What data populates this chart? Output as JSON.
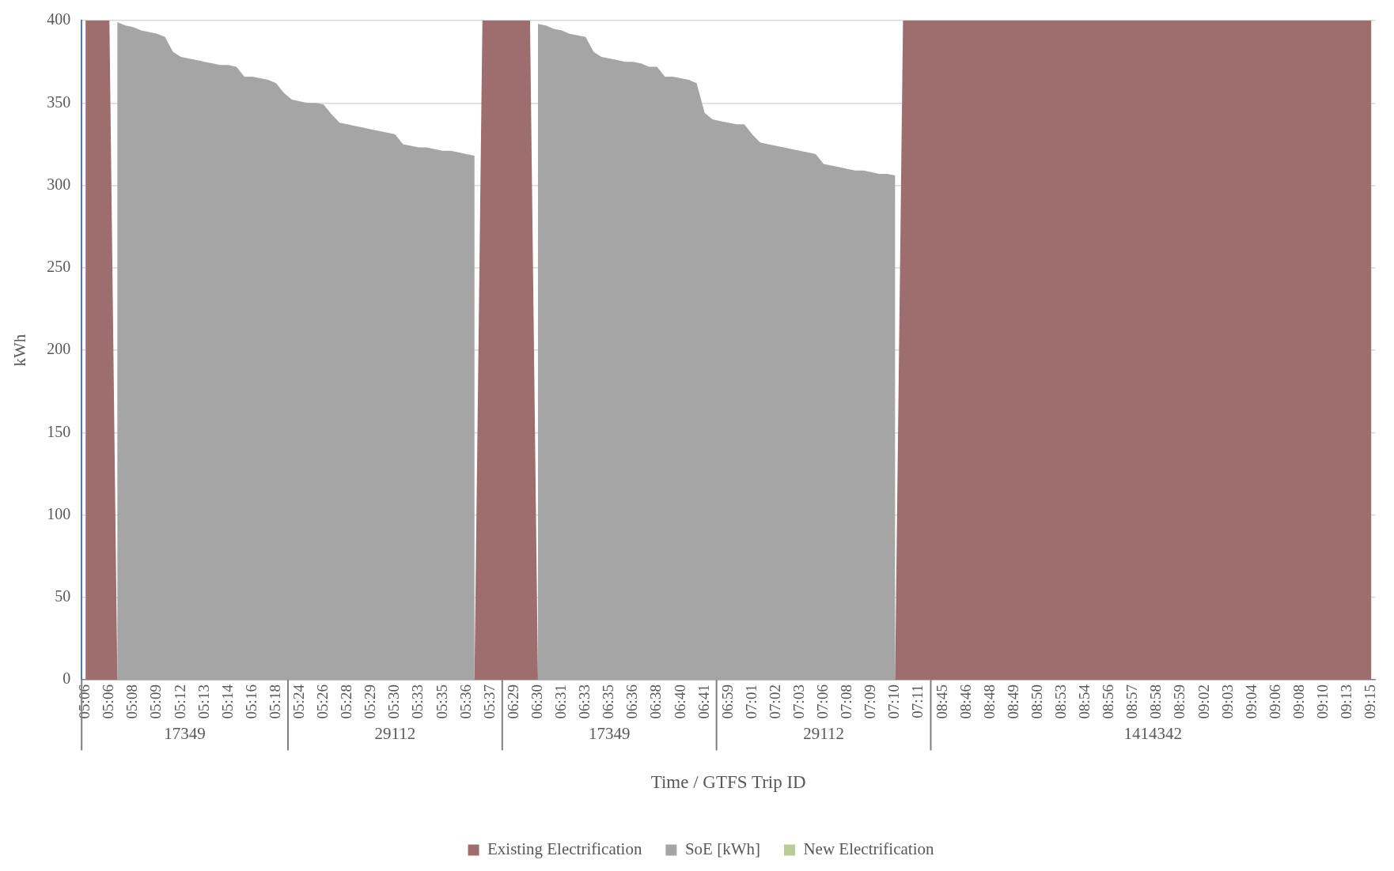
{
  "chart_data": {
    "type": "area",
    "xlabel": "Time / GTFS Trip ID",
    "ylabel": "kWh",
    "ylim": [
      0,
      400
    ],
    "yticks": [
      0,
      50,
      100,
      150,
      200,
      250,
      300,
      350,
      400
    ],
    "grid": "y",
    "legend": "bottom",
    "categories": [
      "05:06",
      null,
      null,
      "05:06",
      null,
      null,
      "05:08",
      null,
      null,
      "05:09",
      null,
      null,
      "05:12",
      null,
      null,
      "05:13",
      null,
      null,
      "05:14",
      null,
      null,
      "05:16",
      null,
      null,
      "05:18",
      null,
      null,
      "05:24",
      null,
      null,
      "05:26",
      null,
      null,
      "05:28",
      null,
      null,
      "05:29",
      null,
      null,
      "05:30",
      null,
      null,
      "05:33",
      null,
      null,
      "05:35",
      null,
      null,
      "05:36",
      null,
      null,
      "05:37",
      null,
      null,
      "06:29",
      null,
      null,
      "06:30",
      null,
      null,
      "06:31",
      null,
      null,
      "06:33",
      null,
      null,
      "06:35",
      null,
      null,
      "06:36",
      null,
      null,
      "06:38",
      null,
      null,
      "06:40",
      null,
      null,
      "06:41",
      null,
      null,
      "06:59",
      null,
      null,
      "07:01",
      null,
      null,
      "07:02",
      null,
      null,
      "07:03",
      null,
      null,
      "07:06",
      null,
      null,
      "07:08",
      null,
      null,
      "07:09",
      null,
      null,
      "07:10",
      null,
      null,
      "07:11",
      null,
      null,
      "08:45",
      null,
      null,
      "08:46",
      null,
      null,
      "08:48",
      null,
      null,
      "08:49",
      null,
      null,
      "08:50",
      null,
      null,
      "08:53",
      null,
      null,
      "08:54",
      null,
      null,
      "08:56",
      null,
      null,
      "08:57",
      null,
      null,
      "08:58",
      null,
      null,
      "08:59",
      null,
      null,
      "09:02",
      null,
      null,
      "09:03",
      null,
      null,
      "09:04",
      null,
      null,
      "09:06",
      null,
      null,
      "09:08",
      null,
      null,
      "09:10",
      null,
      null,
      "09:13",
      null,
      null,
      "09:15"
    ],
    "series": [
      {
        "name": "Existing Electrification",
        "color": "#9e6e6e",
        "values": [
          400,
          400,
          400,
          400,
          0,
          0,
          0,
          0,
          0,
          0,
          0,
          0,
          0,
          0,
          0,
          0,
          0,
          0,
          0,
          0,
          0,
          0,
          0,
          0,
          0,
          0,
          0,
          0,
          0,
          0,
          0,
          0,
          0,
          0,
          0,
          0,
          0,
          0,
          0,
          0,
          0,
          0,
          0,
          0,
          0,
          0,
          0,
          0,
          0,
          0,
          400,
          400,
          400,
          400,
          400,
          400,
          400,
          0,
          0,
          0,
          0,
          0,
          0,
          0,
          0,
          0,
          0,
          0,
          0,
          0,
          0,
          0,
          0,
          0,
          0,
          0,
          0,
          0,
          0,
          0,
          0,
          0,
          0,
          0,
          0,
          0,
          0,
          0,
          0,
          0,
          0,
          0,
          0,
          0,
          0,
          0,
          0,
          0,
          0,
          0,
          0,
          0,
          0,
          400,
          400,
          400,
          400,
          400,
          400,
          400,
          400,
          400,
          400,
          400,
          400,
          400,
          400,
          400,
          400,
          400,
          400,
          400,
          400,
          400,
          400,
          400,
          400,
          400,
          400,
          400,
          400,
          400,
          400,
          400,
          400,
          400,
          400,
          400,
          400,
          400,
          400,
          400,
          400,
          400,
          400,
          400,
          400,
          400,
          400,
          400,
          400,
          400,
          400,
          400,
          400,
          400,
          400,
          400,
          400,
          400,
          400,
          400,
          400
        ]
      },
      {
        "name": "SoE [kWh]",
        "color": "#a5a5a5",
        "values": [
          null,
          null,
          null,
          null,
          399,
          397,
          396,
          394,
          393,
          392,
          390,
          381,
          378,
          377,
          376,
          375,
          374,
          373,
          373,
          372,
          366,
          366,
          365,
          364,
          362,
          356,
          352,
          351,
          350,
          350,
          349,
          343,
          338,
          337,
          336,
          335,
          334,
          333,
          332,
          331,
          325,
          324,
          323,
          323,
          322,
          321,
          321,
          320,
          319,
          318,
          null,
          null,
          null,
          null,
          null,
          null,
          null,
          398,
          397,
          395,
          394,
          392,
          391,
          390,
          381,
          378,
          377,
          376,
          375,
          375,
          374,
          372,
          372,
          366,
          366,
          365,
          364,
          362,
          344,
          340,
          339,
          338,
          337,
          337,
          331,
          326,
          325,
          324,
          323,
          322,
          321,
          320,
          319,
          313,
          312,
          311,
          310,
          309,
          309,
          308,
          307,
          307,
          306,
          null,
          null,
          null,
          null,
          null,
          null,
          null,
          null,
          null,
          null,
          null,
          null,
          null,
          null,
          null,
          null,
          null,
          null,
          null,
          null,
          null,
          null,
          null,
          null,
          null,
          null,
          null,
          null,
          null,
          null,
          null,
          null,
          null,
          null,
          null,
          null,
          null,
          null,
          null,
          null,
          null,
          null,
          null,
          null,
          null,
          null,
          null,
          null,
          null,
          null,
          null,
          null,
          null,
          null,
          null,
          null,
          null,
          null,
          null,
          null
        ]
      },
      {
        "name": "New Electrification",
        "color": "#b9cc95",
        "values": [
          null,
          null,
          null,
          null,
          null,
          null,
          null,
          null,
          null,
          null,
          null,
          null,
          null,
          null,
          null,
          null,
          null,
          null,
          null,
          null,
          null,
          null,
          null,
          null,
          null,
          null,
          null,
          null,
          null,
          null,
          null,
          null,
          null,
          null,
          null,
          null,
          null,
          null,
          null,
          null,
          null,
          null,
          null,
          null,
          null,
          null,
          null,
          null,
          null,
          null,
          null,
          null,
          null,
          null,
          null,
          null,
          null,
          null,
          null,
          null,
          null,
          null,
          null,
          null,
          null,
          null,
          null,
          null,
          null,
          null,
          null,
          null,
          null,
          null,
          null,
          null,
          null,
          null,
          null,
          null,
          null,
          null,
          null,
          null,
          null,
          null,
          null,
          null,
          null,
          null,
          null,
          null,
          null,
          null,
          null,
          null,
          null,
          null,
          null,
          null,
          null,
          null,
          null,
          null,
          null,
          null,
          null,
          null,
          null,
          null,
          null,
          null,
          null,
          null,
          null,
          null,
          null,
          null,
          null,
          null,
          null,
          null,
          null,
          null,
          null,
          null,
          null,
          null,
          null,
          null,
          null,
          null,
          null,
          null,
          null,
          null,
          null,
          null,
          null,
          null,
          null,
          null,
          null,
          null,
          null,
          null,
          null,
          null,
          null,
          null,
          null,
          null,
          null,
          null,
          null,
          null,
          null,
          null,
          null,
          null,
          null,
          null,
          null
        ]
      }
    ],
    "annotations": [
      "17349",
      "29112",
      "17349",
      "29112",
      "1414342"
    ]
  }
}
